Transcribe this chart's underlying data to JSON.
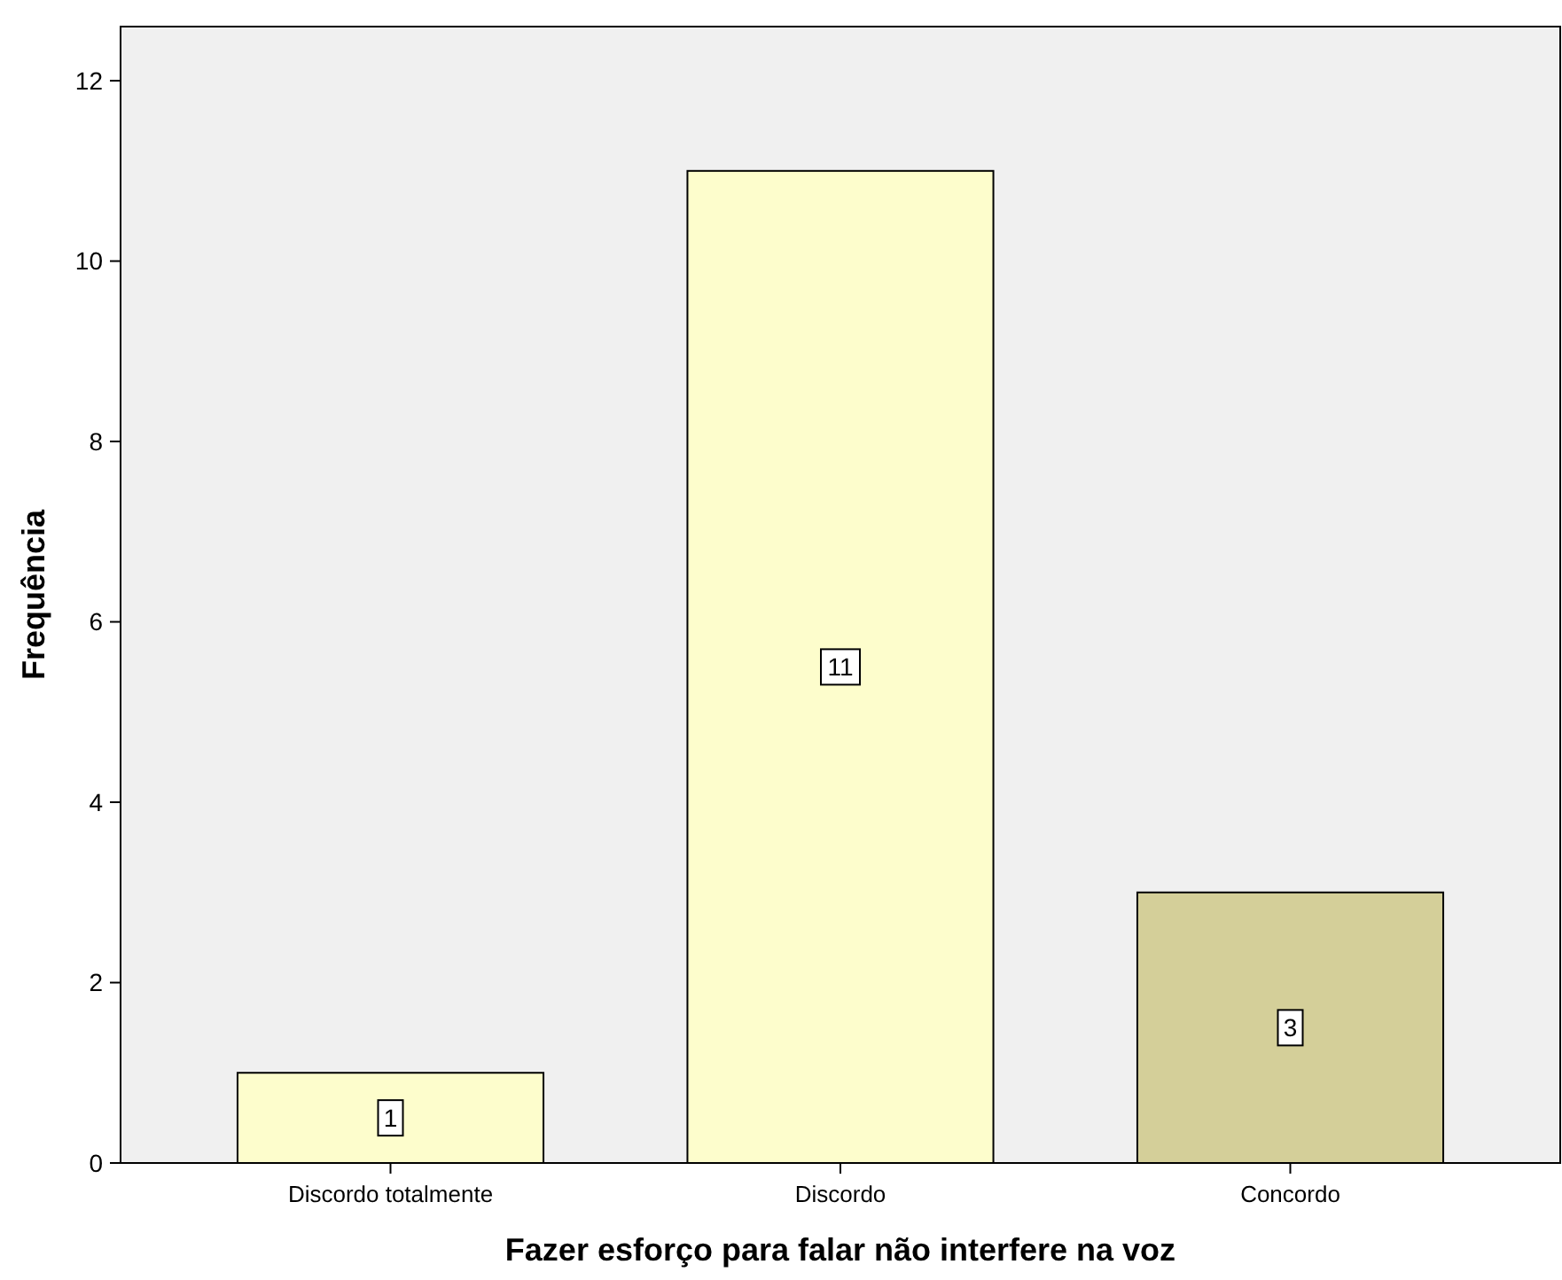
{
  "chart_data": {
    "type": "bar",
    "xlabel": "Fazer esforço para falar não interfere na voz",
    "ylabel": "Frequência",
    "categories": [
      "Discordo totalmente",
      "Discordo",
      "Concordo"
    ],
    "values": [
      1,
      11,
      3
    ],
    "colors": [
      "#fdfdcc",
      "#fdfdcc",
      "#d4cf99"
    ],
    "ylim": [
      0,
      12.6
    ],
    "yticks": [
      0,
      2,
      4,
      6,
      8,
      10,
      12
    ],
    "data_labels": true,
    "grid": false
  }
}
